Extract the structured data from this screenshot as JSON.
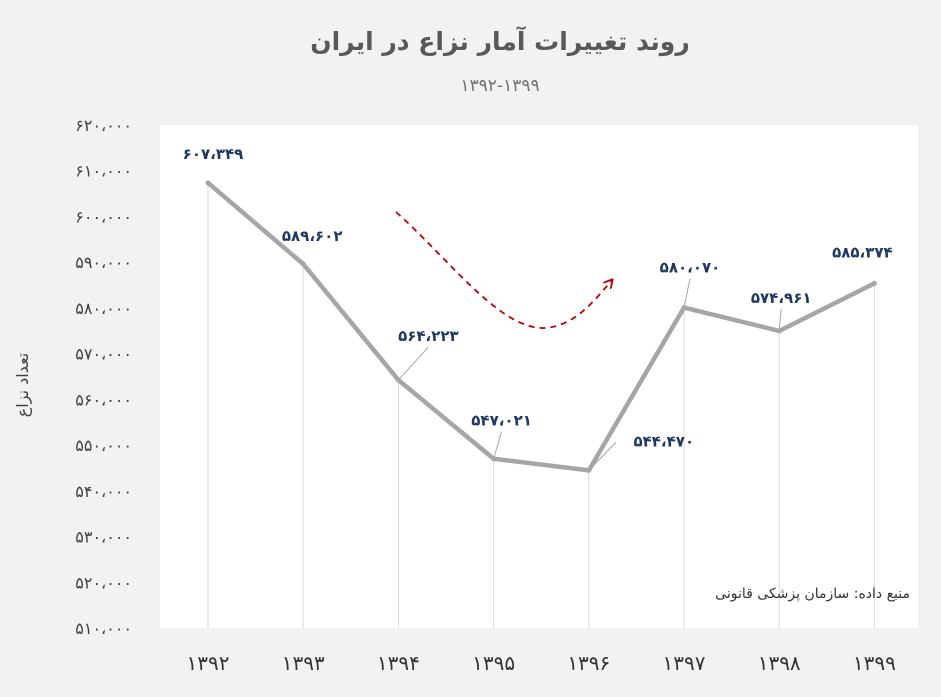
{
  "chart_data": {
    "type": "line",
    "title": "روند تغییرات آمار نزاع در ایران",
    "subtitle": "۱۳۹۲-۱۳۹۹",
    "ylabel": "تعداد نزاع",
    "xlabel": "",
    "categories": [
      "۱۳۹۲",
      "۱۳۹۳",
      "۱۳۹۴",
      "۱۳۹۵",
      "۱۳۹۶",
      "۱۳۹۷",
      "۱۳۹۸",
      "۱۳۹۹"
    ],
    "values": [
      607349,
      589602,
      564223,
      547021,
      544470,
      580070,
      574961,
      585374
    ],
    "data_labels": [
      "۶۰۷،۳۴۹",
      "۵۸۹،۶۰۲",
      "۵۶۴،۲۲۳",
      "۵۴۷،۰۲۱",
      "۵۴۴،۴۷۰",
      "۵۸۰،۰۷۰",
      "۵۷۴،۹۶۱",
      "۵۸۵،۳۷۴"
    ],
    "ylim": [
      510000,
      620000
    ],
    "yticks": [
      620000,
      610000,
      600000,
      590000,
      580000,
      570000,
      560000,
      550000,
      540000,
      530000,
      520000,
      510000
    ],
    "ytick_labels": [
      "۶۲۰،۰۰۰",
      "۶۱۰،۰۰۰",
      "۶۰۰،۰۰۰",
      "۵۹۰،۰۰۰",
      "۵۸۰،۰۰۰",
      "۵۷۰،۰۰۰",
      "۵۶۰،۰۰۰",
      "۵۵۰،۰۰۰",
      "۵۴۰،۰۰۰",
      "۵۳۰،۰۰۰",
      "۵۲۰،۰۰۰",
      "۵۱۰،۰۰۰"
    ],
    "source": "منبع داده: سازمان پزشکی قانونی",
    "grid": "vertical drop lines",
    "legend": "none",
    "colors": {
      "line": "#a6a6a6",
      "labels": "#1f3864",
      "trend_arrow": "#c00000",
      "plot_bg": "#ffffff",
      "page_bg": "#f2f2f2"
    }
  }
}
